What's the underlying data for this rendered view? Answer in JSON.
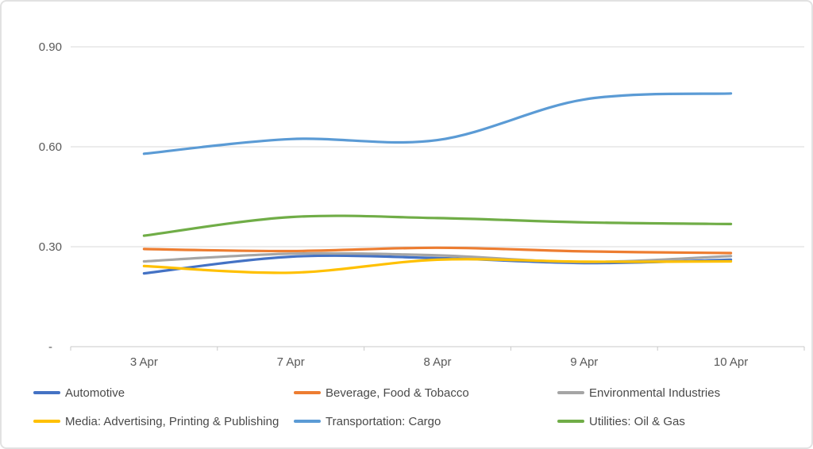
{
  "chart_data": {
    "type": "line",
    "title": "",
    "smooth": true,
    "grid": true,
    "legend_position": "bottom",
    "categories": [
      "3 Apr",
      "7 Apr",
      "8 Apr",
      "9 Apr",
      "10 Apr"
    ],
    "series": [
      {
        "name": "Automotive",
        "color": "#4472C4",
        "values": [
          0.22,
          0.27,
          0.266,
          0.251,
          0.261
        ]
      },
      {
        "name": "Beverage, Food & Tobacco",
        "color": "#ED7D31",
        "values": [
          0.293,
          0.287,
          0.297,
          0.286,
          0.281
        ]
      },
      {
        "name": "Environmental Industries",
        "color": "#A5A5A5",
        "values": [
          0.256,
          0.279,
          0.274,
          0.254,
          0.272
        ]
      },
      {
        "name": "Media: Advertising, Printing & Publishing",
        "color": "#FFC000",
        "values": [
          0.242,
          0.222,
          0.261,
          0.255,
          0.256
        ]
      },
      {
        "name": "Transportation: Cargo",
        "color": "#5B9BD5",
        "values": [
          0.579,
          0.623,
          0.62,
          0.742,
          0.76
        ]
      },
      {
        "name": "Utilities: Oil & Gas",
        "color": "#70AD47",
        "values": [
          0.333,
          0.389,
          0.386,
          0.373,
          0.368
        ]
      }
    ],
    "y_axis": {
      "min": 0,
      "max": 0.9,
      "tick_interval": 0.3,
      "tick_values": [
        0,
        0.3,
        0.6,
        0.9
      ],
      "tick_labels": [
        "-",
        "0.30",
        "0.60",
        "0.90"
      ]
    }
  },
  "colors": {
    "background": "#FFFFFF",
    "card_border": "#E2E2E2",
    "gridline": "#D9D9D9",
    "axis_line": "#C9C9C9",
    "axis_text": "#595959",
    "legend_text": "#494949"
  }
}
